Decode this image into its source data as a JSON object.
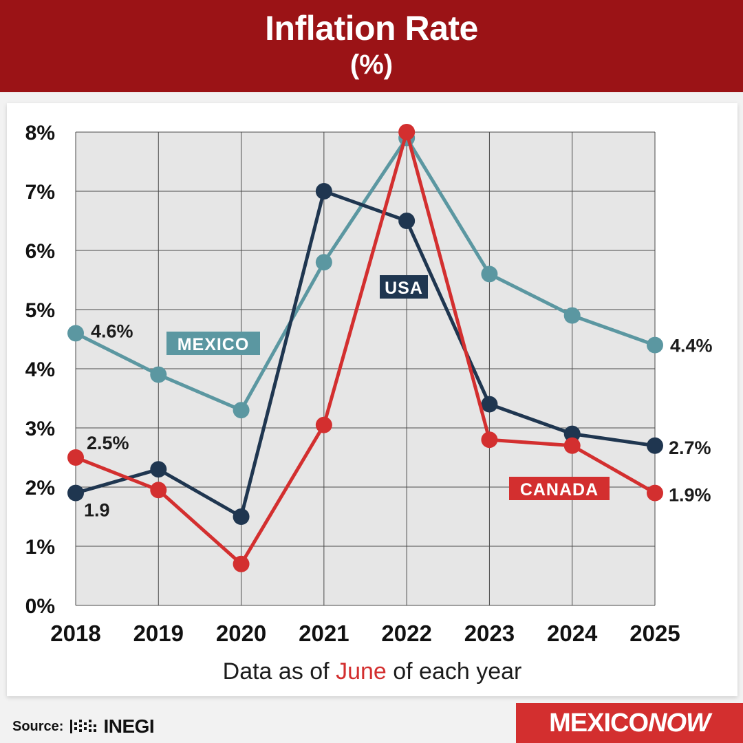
{
  "header": {
    "title": "Inflation Rate",
    "subtitle": "(%)"
  },
  "footnote": {
    "before": "Data as of ",
    "highlight": "June",
    "after": " of each year"
  },
  "source": {
    "label": "Source:",
    "org": "INEGI"
  },
  "brand": {
    "part1": "MEXICO",
    "part2": "NOW"
  },
  "colors": {
    "header": "#9b1316",
    "mexico": "#5b97a1",
    "usa": "#1f3650",
    "canada": "#d32f2f"
  },
  "chart_data": {
    "type": "line",
    "x": [
      "2018",
      "2019",
      "2020",
      "2021",
      "2022",
      "2023",
      "2024",
      "2025"
    ],
    "ylim": [
      0,
      8
    ],
    "yticks": [
      "0%",
      "1%",
      "2%",
      "3%",
      "4%",
      "5%",
      "6%",
      "7%",
      "8%"
    ],
    "grid": true,
    "series": [
      {
        "name": "MEXICO",
        "color": "#5b97a1",
        "values": [
          4.6,
          3.9,
          3.3,
          5.8,
          7.9,
          5.6,
          4.9,
          4.4
        ],
        "labels": [
          {
            "index": 0,
            "text": "4.6%"
          },
          {
            "index": 7,
            "text": "4.4%"
          }
        ]
      },
      {
        "name": "USA",
        "color": "#1f3650",
        "values": [
          1.9,
          2.3,
          1.5,
          7.0,
          6.5,
          3.4,
          2.9,
          2.7
        ],
        "labels": [
          {
            "index": 0,
            "text": "1.9"
          },
          {
            "index": 7,
            "text": "2.7%"
          }
        ]
      },
      {
        "name": "CANADA",
        "color": "#d32f2f",
        "values": [
          2.5,
          1.95,
          0.7,
          3.05,
          8.0,
          2.8,
          2.7,
          1.9
        ],
        "labels": [
          {
            "index": 0,
            "text": "2.5%"
          },
          {
            "index": 7,
            "text": "1.9%"
          }
        ]
      }
    ]
  }
}
